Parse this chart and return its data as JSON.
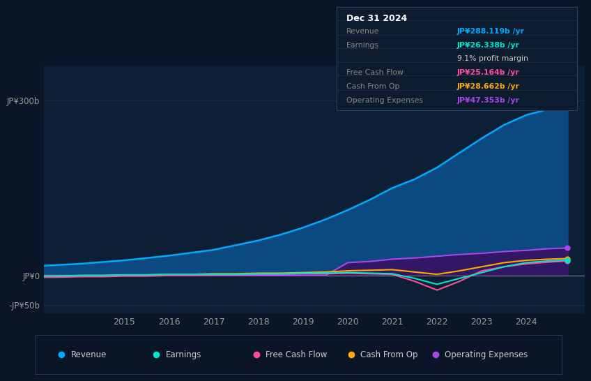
{
  "bg_color": "#0a1628",
  "plot_bg_color": "#0d1f35",
  "grid_color": "#1a3050",
  "years": [
    2013.0,
    2013.5,
    2014.0,
    2014.5,
    2015.0,
    2015.5,
    2016.0,
    2016.5,
    2017.0,
    2017.5,
    2018.0,
    2018.5,
    2019.0,
    2019.5,
    2020.0,
    2020.5,
    2021.0,
    2021.5,
    2022.0,
    2022.5,
    2023.0,
    2023.5,
    2024.0,
    2024.5,
    2024.92
  ],
  "revenue": [
    16,
    18,
    20,
    23,
    26,
    30,
    34,
    39,
    44,
    52,
    60,
    70,
    82,
    96,
    112,
    130,
    150,
    165,
    185,
    210,
    235,
    258,
    275,
    285,
    288
  ],
  "earnings": [
    -1,
    -1,
    0,
    0,
    1,
    1,
    2,
    2,
    2,
    2,
    3,
    3,
    4,
    4,
    5,
    4,
    3,
    -5,
    -15,
    -5,
    5,
    15,
    22,
    25,
    26
  ],
  "free_cash_flow": [
    -3,
    -3,
    -2,
    -2,
    -1,
    -1,
    0,
    0,
    1,
    1,
    2,
    2,
    3,
    3,
    4,
    3,
    2,
    -10,
    -25,
    -10,
    8,
    15,
    20,
    23,
    25
  ],
  "cash_from_op": [
    -1,
    -1,
    0,
    0,
    1,
    1,
    2,
    2,
    3,
    3,
    4,
    4,
    5,
    6,
    8,
    9,
    10,
    6,
    2,
    8,
    15,
    22,
    26,
    28,
    29
  ],
  "operating_exp": [
    0,
    0,
    0,
    0,
    0,
    0,
    0,
    0,
    0,
    0,
    0,
    0,
    0,
    0,
    22,
    24,
    28,
    30,
    33,
    36,
    38,
    41,
    43,
    46,
    47
  ],
  "revenue_color": "#00aaff",
  "earnings_color": "#00e5cc",
  "free_cash_flow_color": "#ff4d9d",
  "cash_from_op_color": "#ffaa00",
  "operating_exp_color": "#aa44ee",
  "revenue_fill": "#0a4a80",
  "operating_exp_fill": "#3a1060",
  "ylim_min": -65,
  "ylim_max": 360,
  "ytick_300_label": "JP¥300b",
  "ytick_0_label": "JP¥0",
  "ytick_neg50_label": "-JP¥50b",
  "xlim_min": 2013.2,
  "xlim_max": 2025.3,
  "xticks": [
    2015,
    2016,
    2017,
    2018,
    2019,
    2020,
    2021,
    2022,
    2023,
    2024
  ],
  "legend_items": [
    {
      "label": "Revenue",
      "color": "#00aaff"
    },
    {
      "label": "Earnings",
      "color": "#00e5cc"
    },
    {
      "label": "Free Cash Flow",
      "color": "#ff4d9d"
    },
    {
      "label": "Cash From Op",
      "color": "#ffaa00"
    },
    {
      "label": "Operating Expenses",
      "color": "#aa44ee"
    }
  ],
  "tooltip_title": "Dec 31 2024",
  "tooltip_rows": [
    {
      "label": "Revenue",
      "value": "JP¥288.119b /yr",
      "value_color": "#00aaff",
      "label_color": "#888888"
    },
    {
      "label": "Earnings",
      "value": "JP¥26.338b /yr",
      "value_color": "#00e5cc",
      "label_color": "#888888"
    },
    {
      "label": "",
      "value": "9.1% profit margin",
      "value_color": "#cccccc",
      "label_color": "#888888"
    },
    {
      "label": "Free Cash Flow",
      "value": "JP¥25.164b /yr",
      "value_color": "#ff4d9d",
      "label_color": "#888888"
    },
    {
      "label": "Cash From Op",
      "value": "JP¥28.662b /yr",
      "value_color": "#ffaa00",
      "label_color": "#888888"
    },
    {
      "label": "Operating Expenses",
      "value": "JP¥47.353b /yr",
      "value_color": "#aa44ee",
      "label_color": "#888888"
    }
  ]
}
